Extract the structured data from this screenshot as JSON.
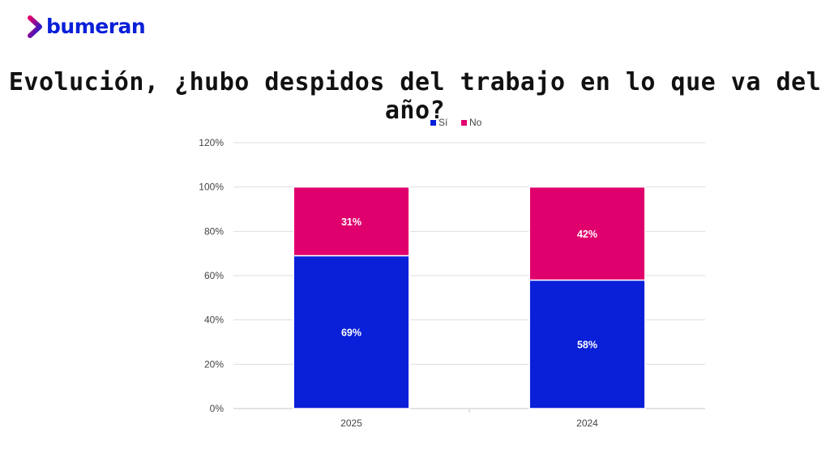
{
  "brand": {
    "name": "bumeran",
    "logo_icon": "chevron-right-icon",
    "colors": {
      "primary": "#0a1fd8",
      "accent": "#e0006d"
    }
  },
  "title": "Evolución, ¿hubo despidos del trabajo en lo que va del año?",
  "chart_data": {
    "type": "bar",
    "stacked": true,
    "categories": [
      "2025",
      "2024"
    ],
    "series": [
      {
        "name": "Sí",
        "values": [
          69,
          58
        ],
        "labels": [
          "69%",
          "58%"
        ],
        "color": "#0a1fd8"
      },
      {
        "name": "No",
        "values": [
          31,
          42
        ],
        "labels": [
          "31%",
          "42%"
        ],
        "color": "#e0006d"
      }
    ],
    "y_ticks": [
      "0%",
      "20%",
      "40%",
      "60%",
      "80%",
      "100%",
      "120%"
    ],
    "ylim": [
      0,
      120
    ],
    "grid": true,
    "legend": "top-center"
  }
}
